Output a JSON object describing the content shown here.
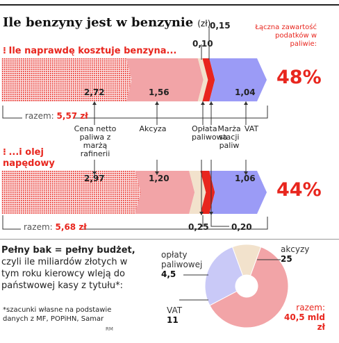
{
  "title": "Ile benzyny jest w benzynie",
  "title_unit": "(zł)",
  "tax_note": "Łączna zawartość podatków w paliwie:",
  "colors": {
    "red": "#e8261e",
    "pink": "#f2a4a7",
    "beige": "#f2e2cc",
    "blue": "#9b9bf6",
    "grey": "#555555"
  },
  "categories": [
    "Cena netto paliwa z marżą rafinerii",
    "Akcyza",
    "Opłata paliwowa",
    "Marża stacji paliw",
    "VAT"
  ],
  "sections": [
    {
      "title": "Ile naprawdę kosztuje benzyna...",
      "values": [
        "2,72",
        "1,56",
        "0,10",
        "0,15",
        "1,04"
      ],
      "tax_pct": "48%",
      "total_label": "razem:",
      "total_value": "5,57 zł"
    },
    {
      "title_line1": "...i olej",
      "title_line2": "napędowy",
      "values": [
        "2,97",
        "1,20",
        "0,25",
        "0,20",
        "1,06"
      ],
      "tax_pct": "44%",
      "total_label": "razem:",
      "total_value": "5,68 zł"
    }
  ],
  "bottom": {
    "title_bold": "Pełny bak = pełny budżet,",
    "title_rest": "czyli ile miliardów złotych w tym roku kierowcy wleją do państwowej kasy z tytułu*:",
    "footnote": "*szacunki własne na podstawie danych z MF, POPiHN, Samar",
    "credit": "RM"
  },
  "chart_data": [
    {
      "type": "bar",
      "title": "Ile naprawdę kosztuje benzyna...",
      "categories": [
        "Cena netto paliwa z marżą rafinerii",
        "Akcyza",
        "Opłata paliwowa",
        "Marża stacji paliw",
        "VAT"
      ],
      "values": [
        2.72,
        1.56,
        0.1,
        0.15,
        1.04
      ],
      "total": 5.57
    },
    {
      "type": "bar",
      "title": "...i olej napędowy",
      "categories": [
        "Cena netto paliwa z marżą rafinerii",
        "Akcyza",
        "Opłata paliwowa",
        "Marża stacji paliw",
        "VAT"
      ],
      "values": [
        2.97,
        1.2,
        0.25,
        0.2,
        1.06
      ],
      "total": 5.68
    },
    {
      "type": "pie",
      "slice_labels": [
        "akcyzy",
        "opłaty paliwowej",
        "VAT"
      ],
      "values": [
        25,
        4.5,
        11
      ],
      "value_labels": [
        "25",
        "4,5",
        "11"
      ],
      "total_label": "razem:",
      "total_value": "40,5 mld zł"
    }
  ]
}
